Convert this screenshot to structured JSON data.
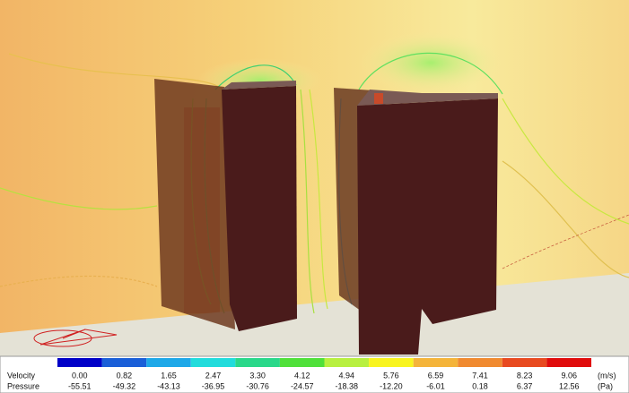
{
  "legend": {
    "velocity_label": "Velocity",
    "velocity_values": [
      "0.00",
      "0.82",
      "1.65",
      "2.47",
      "3.30",
      "4.12",
      "4.94",
      "5.76",
      "6.59",
      "7.41",
      "8.23",
      "9.06"
    ],
    "velocity_unit": "(m/s)",
    "pressure_label": "Pressure",
    "pressure_values": [
      "-55.51",
      "-49.32",
      "-43.13",
      "-36.95",
      "-30.76",
      "-24.57",
      "-18.38",
      "-12.20",
      "-6.01",
      "0.18",
      "6.37",
      "12.56"
    ],
    "pressure_unit": "(Pa)",
    "colors": [
      "#0000c8",
      "#1a5fd8",
      "#1ea8e8",
      "#22dcdc",
      "#2ad88a",
      "#50e03a",
      "#b8f040",
      "#f8f420",
      "#f4b43a",
      "#f08a30",
      "#e84a20",
      "#e00c0c"
    ]
  }
}
